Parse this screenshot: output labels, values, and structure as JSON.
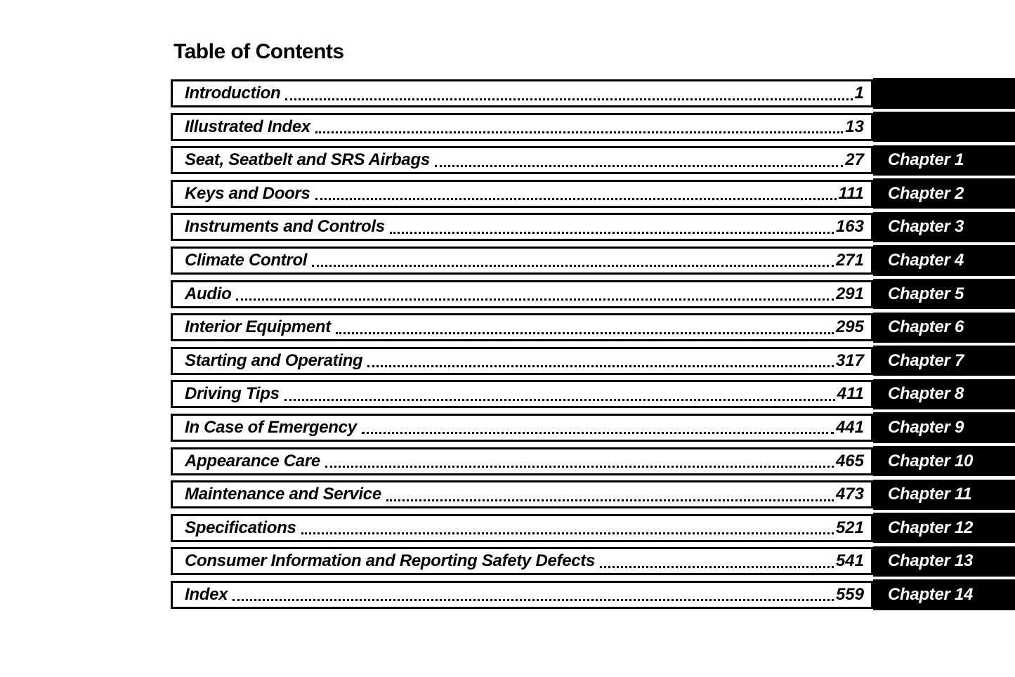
{
  "title": "Table of Contents",
  "colors": {
    "ink": "#000000",
    "paper": "#ffffff",
    "tab_bg": "#000000",
    "tab_text": "#ffffff"
  },
  "toc": {
    "entries": [
      {
        "title": "Introduction",
        "page": "1",
        "chapter": ""
      },
      {
        "title": "Illustrated Index",
        "page": "13",
        "chapter": ""
      },
      {
        "title": "Seat, Seatbelt and SRS Airbags",
        "page": "27",
        "chapter": "Chapter 1"
      },
      {
        "title": "Keys and Doors",
        "page": "111",
        "chapter": "Chapter 2"
      },
      {
        "title": "Instruments and Controls",
        "page": "163",
        "chapter": "Chapter 3"
      },
      {
        "title": "Climate Control",
        "page": "271",
        "chapter": "Chapter 4"
      },
      {
        "title": "Audio",
        "page": "291",
        "chapter": "Chapter 5"
      },
      {
        "title": "Interior Equipment",
        "page": "295",
        "chapter": "Chapter 6"
      },
      {
        "title": "Starting and Operating",
        "page": "317",
        "chapter": "Chapter 7"
      },
      {
        "title": "Driving Tips",
        "page": "411",
        "chapter": "Chapter 8"
      },
      {
        "title": "In Case of Emergency",
        "page": "441",
        "chapter": "Chapter 9"
      },
      {
        "title": "Appearance Care",
        "page": "465",
        "chapter": "Chapter 10"
      },
      {
        "title": "Maintenance and Service",
        "page": "473",
        "chapter": "Chapter 11"
      },
      {
        "title": "Specifications",
        "page": "521",
        "chapter": "Chapter 12"
      },
      {
        "title": "Consumer Information and Reporting Safety Defects",
        "page": "541",
        "chapter": "Chapter 13"
      },
      {
        "title": "Index",
        "page": "559",
        "chapter": "Chapter 14"
      }
    ]
  }
}
